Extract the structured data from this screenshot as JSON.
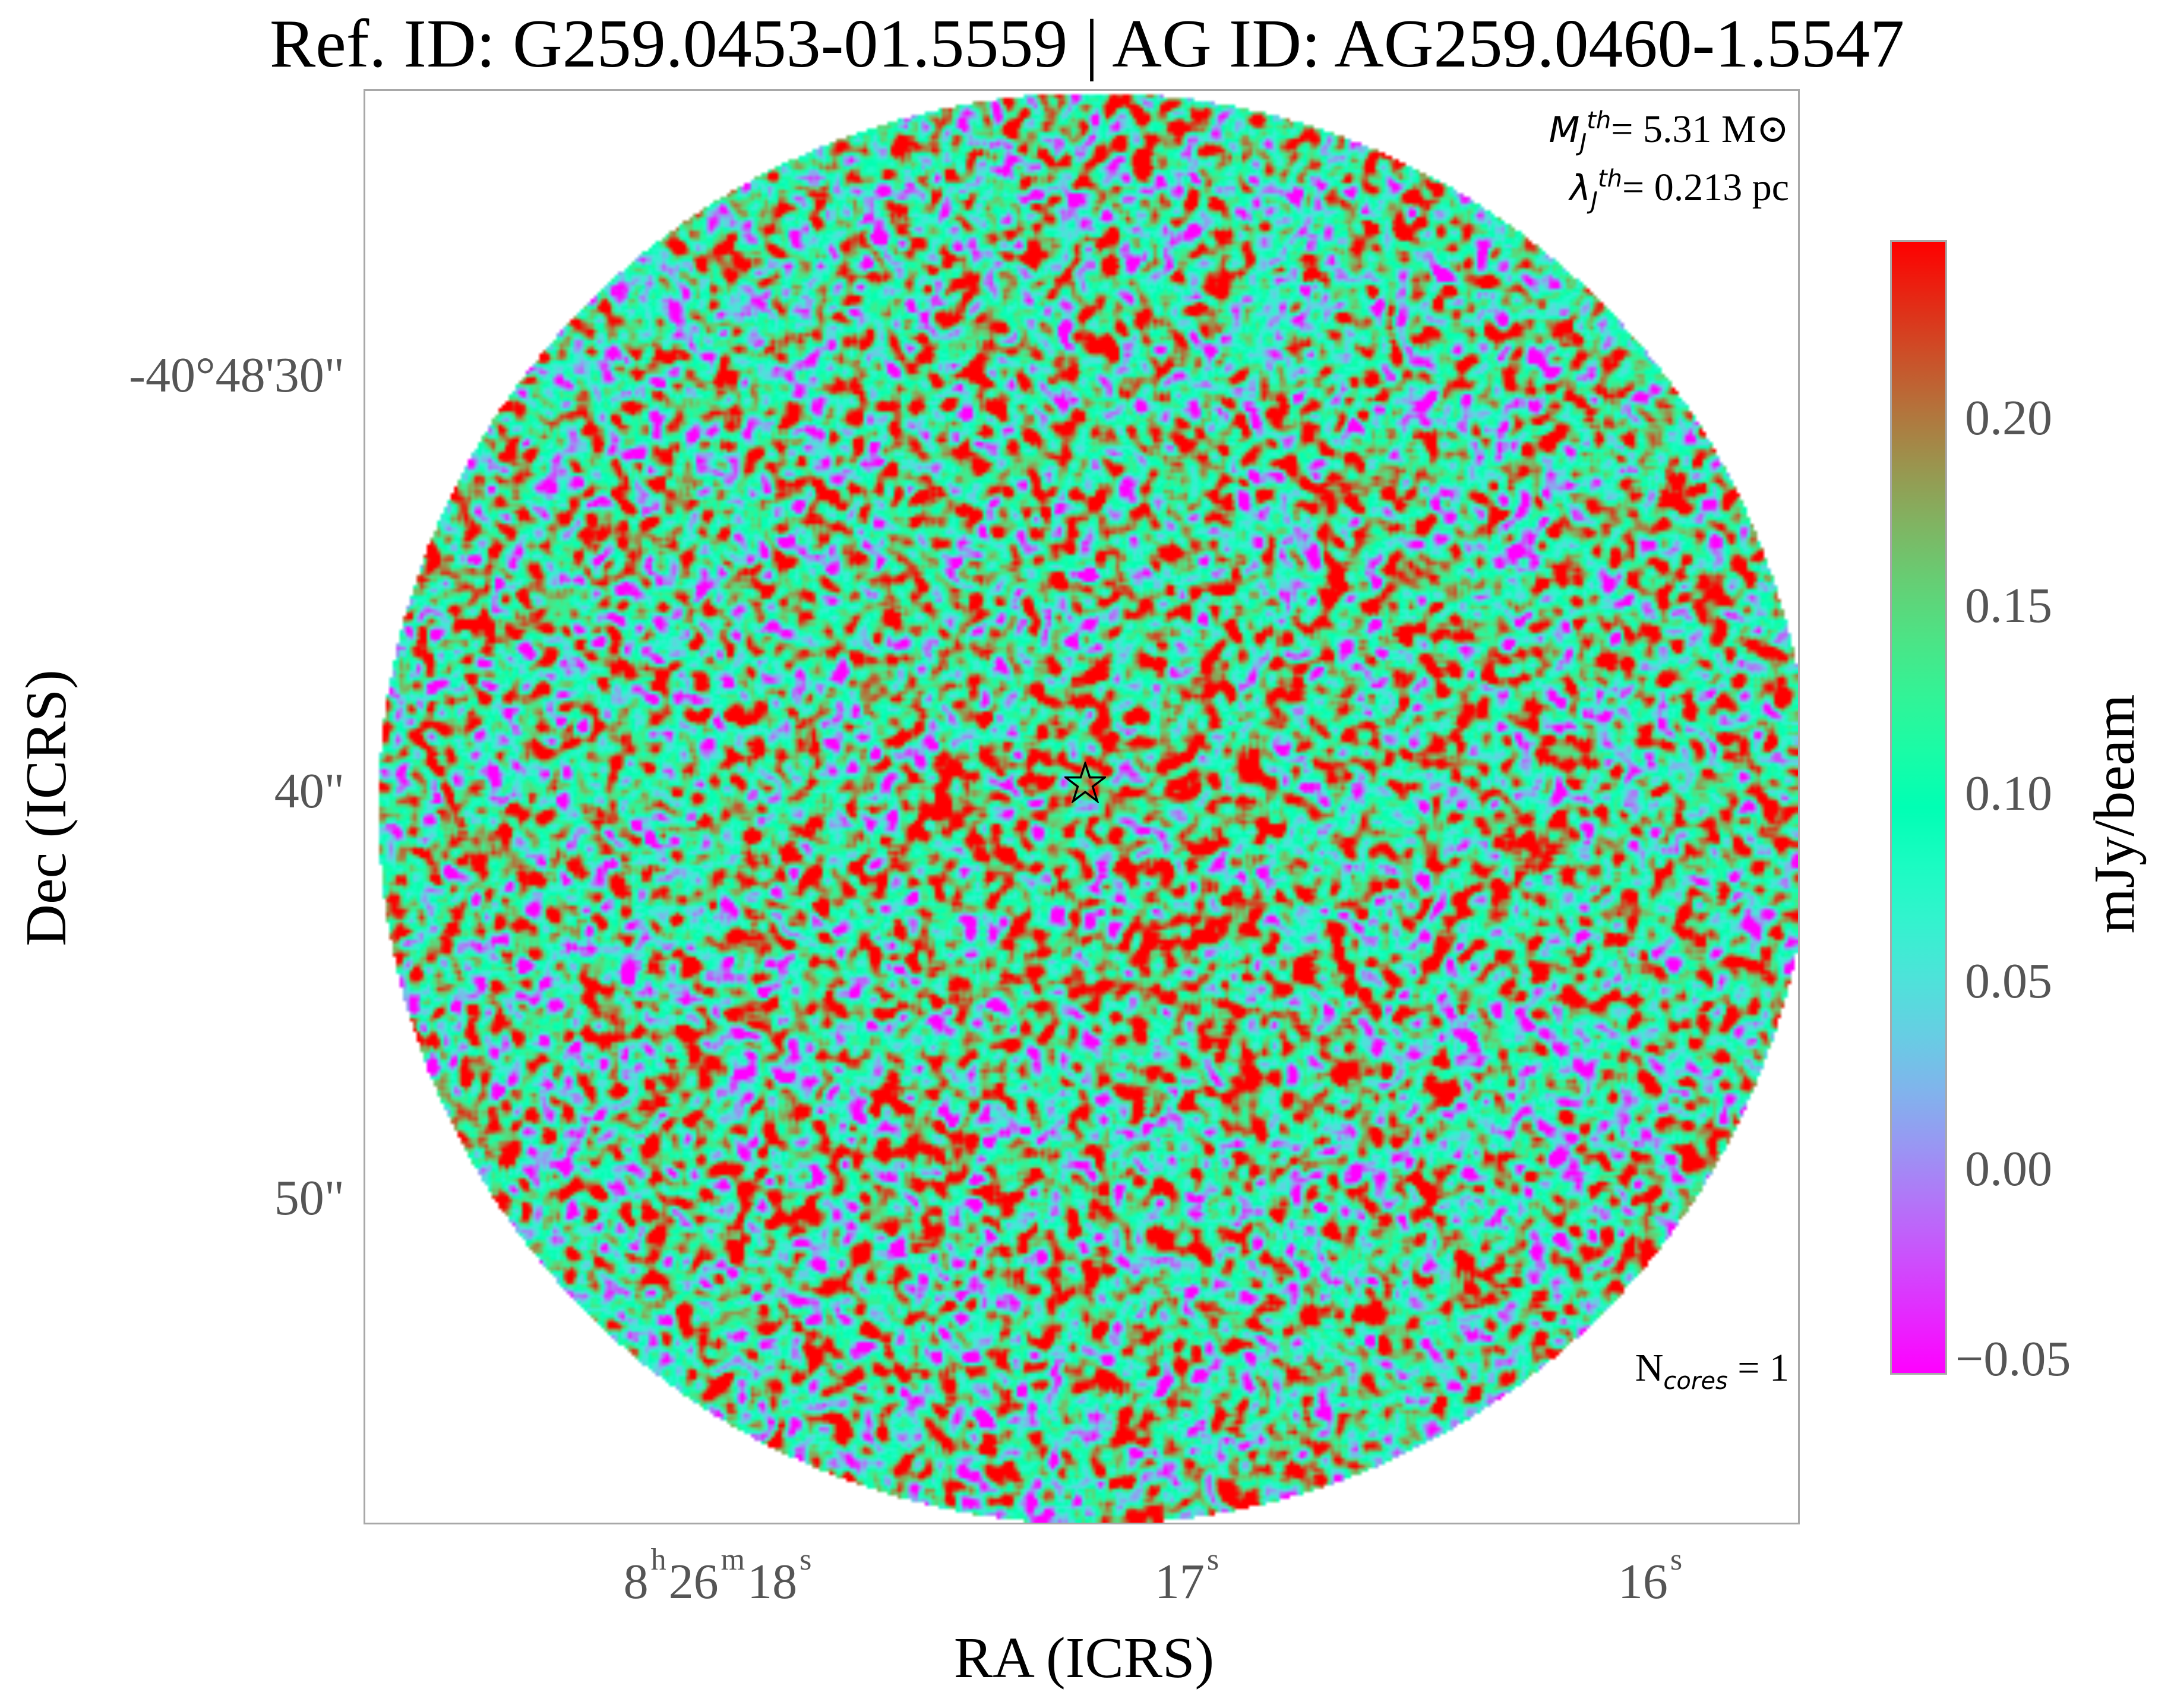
{
  "chart_data": {
    "type": "heatmap",
    "title": "Ref. ID: G259.0453-01.5559 | AG ID: AG259.0460-1.5547",
    "xlabel": "RA (ICRS)",
    "ylabel": "Dec (ICRS)",
    "x_ticks": [
      {
        "h": "8",
        "m": "26",
        "s": "18",
        "sup_h": "h",
        "sup_m": "m",
        "sup_s": "s"
      },
      {
        "s": "17",
        "sup_s": "s"
      },
      {
        "s": "16",
        "sup_s": "s"
      }
    ],
    "y_ticks": [
      "-40°48'30\"",
      "40\"",
      "50\""
    ],
    "colorbar": {
      "label": "mJy/beam",
      "min": -0.05,
      "max": 0.245,
      "ticks": [
        "0.20",
        "0.15",
        "0.10",
        "0.05",
        "0.00",
        "−0.05"
      ],
      "tick_values": [
        0.2,
        0.15,
        0.1,
        0.05,
        0.0,
        -0.05
      ],
      "colormap": "rainbow"
    },
    "annotations": {
      "mj_label": "M",
      "mj_sub": "J",
      "mj_sup": "th",
      "mj_value": "= 5.31 M⊙",
      "lj_label": "λ",
      "lj_sub": "J",
      "lj_sup": "th",
      "lj_value": "= 0.213 pc",
      "ncores_label": "N",
      "ncores_sub": "cores",
      "ncores_value": " = 1"
    },
    "marker": "star",
    "grid": false
  }
}
